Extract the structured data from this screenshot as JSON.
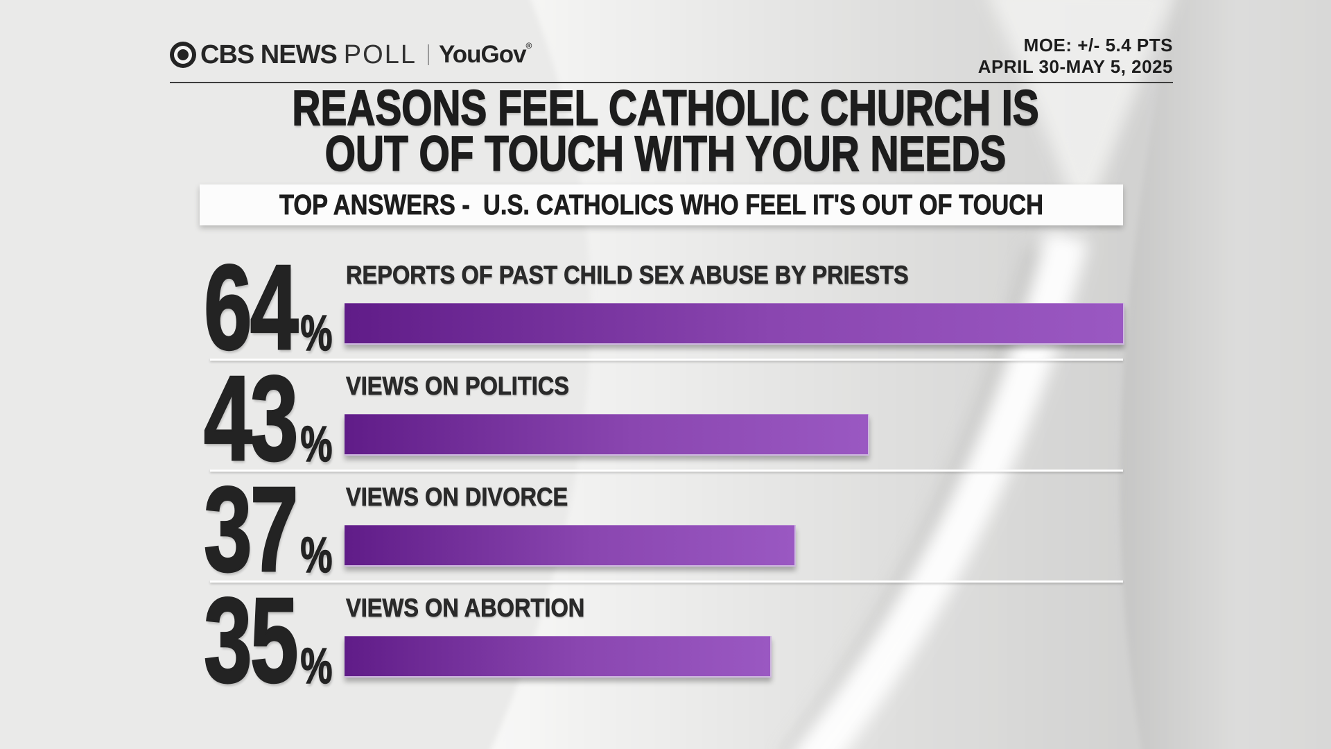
{
  "branding": {
    "eye_icon": "cbs-eye-icon",
    "cbs_news": "CBS NEWS",
    "poll": "POLL",
    "partner": "YouGov",
    "registered_mark": "®"
  },
  "meta": {
    "moe": "MOE: +/- 5.4 PTS",
    "date_range": "APRIL 30-MAY 5, 2025"
  },
  "title": {
    "line1": "REASONS FEEL CATHOLIC CHURCH IS",
    "line2": "OUT OF TOUCH WITH YOUR NEEDS"
  },
  "subtitle": "TOP ANSWERS -  U.S. CATHOLICS WHO FEEL IT'S OUT OF TOUCH",
  "chart_data": {
    "type": "bar",
    "orientation": "horizontal",
    "title": "REASONS FEEL CATHOLIC CHURCH IS OUT OF TOUCH WITH YOUR NEEDS",
    "subtitle": "TOP ANSWERS -  U.S. CATHOLICS WHO FEEL IT'S OUT OF TOUCH",
    "categories": [
      "REPORTS OF PAST CHILD SEX ABUSE BY PRIESTS",
      "VIEWS ON POLITICS",
      "VIEWS ON DIVORCE",
      "VIEWS ON ABORTION"
    ],
    "values": [
      64,
      43,
      37,
      35
    ],
    "unit": "%",
    "xlim": [
      0,
      64
    ],
    "grid": false,
    "legend": "none",
    "value_label_position": "left-of-bar",
    "bar_colors": [
      "#601c88",
      "#8a46b0",
      "#9a58c2"
    ]
  },
  "colors": {
    "background": "#eaeae9",
    "title_text": "#1d1d1d",
    "label_text": "#2a2a2a",
    "subtitle_bg": "#fcfcfc",
    "header_rule": "#3d3d3d"
  }
}
